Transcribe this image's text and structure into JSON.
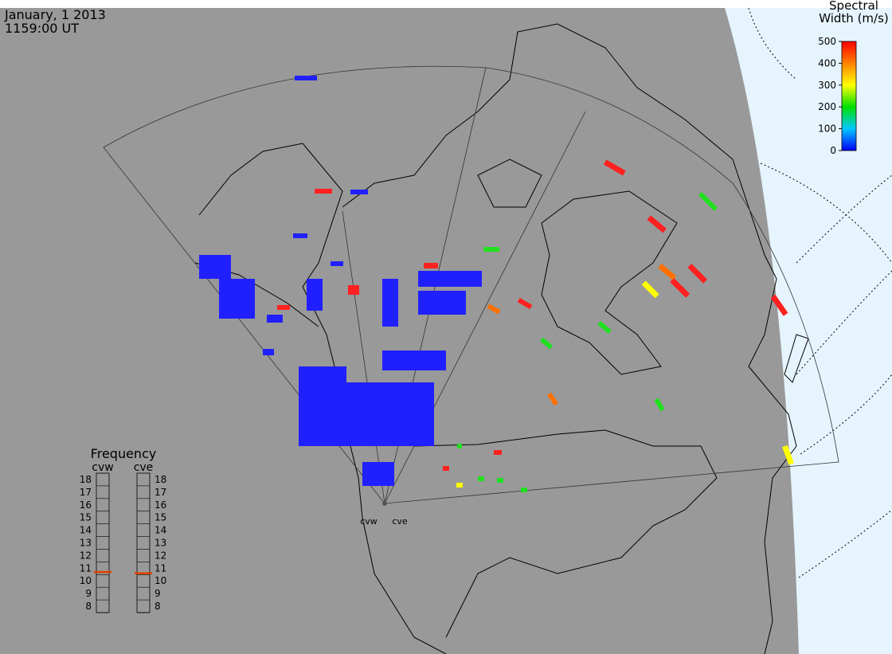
{
  "header": {
    "date": "January, 1 2013",
    "time": "1159:00 UT"
  },
  "colorbar": {
    "title": [
      "Spectral",
      "Width (m/s)"
    ],
    "lim": [
      0,
      500
    ],
    "ticks": [
      0,
      100,
      200,
      300,
      400,
      500
    ]
  },
  "frequency": {
    "title": "Frequency",
    "lim": [
      8,
      18
    ],
    "ticks": [
      8,
      9,
      10,
      11,
      12,
      13,
      14,
      15,
      16,
      17,
      18
    ],
    "radars": [
      {
        "name": "cvw",
        "value": 10.7
      },
      {
        "name": "cve",
        "value": 10.6
      }
    ]
  },
  "sites": [
    "cvw",
    "cve"
  ]
}
